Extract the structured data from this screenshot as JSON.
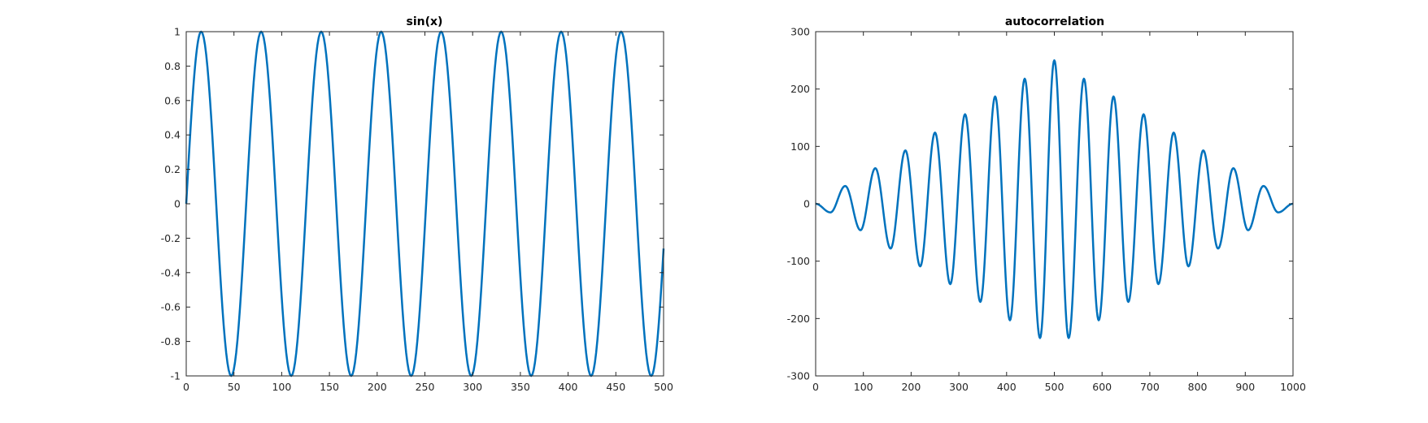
{
  "style": {
    "line_color": "#0072bd",
    "axes_color": "#262626",
    "background": "#ffffff"
  },
  "chart_data": [
    {
      "type": "line",
      "title": "sin(x)",
      "xlabel": "",
      "ylabel": "",
      "xlim": [
        0,
        500
      ],
      "ylim": [
        -1,
        1
      ],
      "grid": false,
      "xticks": [
        "0",
        "50",
        "100",
        "150",
        "200",
        "250",
        "300",
        "350",
        "400",
        "450",
        "500"
      ],
      "yticks": [
        "1",
        "0.8",
        "0.6",
        "0.4",
        "0.2",
        "0",
        "-0.2",
        "-0.4",
        "-0.6",
        "-0.8",
        "-1"
      ],
      "series": [
        {
          "function": "sin(x/10)",
          "x_range": [
            0,
            500
          ],
          "peaks": [
            {
              "x": 15.7,
              "y": 1
            },
            {
              "x": 78.5,
              "y": 1
            },
            {
              "x": 141.4,
              "y": 1
            },
            {
              "x": 204.2,
              "y": 1
            },
            {
              "x": 267.0,
              "y": 1
            },
            {
              "x": 329.9,
              "y": 1
            },
            {
              "x": 392.7,
              "y": 1
            },
            {
              "x": 455.5,
              "y": 1
            }
          ],
          "troughs": [
            {
              "x": 47.1,
              "y": -1
            },
            {
              "x": 110.0,
              "y": -1
            },
            {
              "x": 172.8,
              "y": -1
            },
            {
              "x": 235.6,
              "y": -1
            },
            {
              "x": 298.5,
              "y": -1
            },
            {
              "x": 361.3,
              "y": -1
            },
            {
              "x": 424.1,
              "y": -1
            },
            {
              "x": 487.0,
              "y": -1
            }
          ],
          "end": {
            "x": 500,
            "y": -0.26
          }
        }
      ]
    },
    {
      "type": "line",
      "title": "autocorrelation",
      "xlabel": "",
      "ylabel": "",
      "xlim": [
        0,
        1000
      ],
      "ylim": [
        -300,
        300
      ],
      "grid": false,
      "xticks": [
        "0",
        "100",
        "200",
        "300",
        "400",
        "500",
        "600",
        "700",
        "800",
        "900",
        "1000"
      ],
      "yticks": [
        "300",
        "200",
        "100",
        "0",
        "-100",
        "-200",
        "-300"
      ],
      "series": [
        {
          "description": "autocorrelation of sin(x/10), lags 0..1000",
          "x_range": [
            0,
            1000
          ],
          "center": {
            "x": 500,
            "y": 250
          },
          "peaks": [
            {
              "x": 62,
              "y": 31
            },
            {
              "x": 125,
              "y": 62
            },
            {
              "x": 188,
              "y": 93
            },
            {
              "x": 250,
              "y": 124
            },
            {
              "x": 313,
              "y": 156
            },
            {
              "x": 376,
              "y": 187
            },
            {
              "x": 438,
              "y": 218
            },
            {
              "x": 500,
              "y": 250
            },
            {
              "x": 562,
              "y": 218
            },
            {
              "x": 624,
              "y": 187
            },
            {
              "x": 687,
              "y": 156
            },
            {
              "x": 750,
              "y": 124
            },
            {
              "x": 812,
              "y": 93
            },
            {
              "x": 875,
              "y": 62
            },
            {
              "x": 938,
              "y": 31
            }
          ],
          "troughs": [
            {
              "x": 31,
              "y": -15
            },
            {
              "x": 94,
              "y": -46
            },
            {
              "x": 157,
              "y": -78
            },
            {
              "x": 219,
              "y": -109
            },
            {
              "x": 282,
              "y": -140
            },
            {
              "x": 345,
              "y": -171
            },
            {
              "x": 407,
              "y": -203
            },
            {
              "x": 470,
              "y": -234
            },
            {
              "x": 530,
              "y": -234
            },
            {
              "x": 593,
              "y": -203
            },
            {
              "x": 655,
              "y": -171
            },
            {
              "x": 718,
              "y": -140
            },
            {
              "x": 781,
              "y": -109
            },
            {
              "x": 843,
              "y": -78
            },
            {
              "x": 906,
              "y": -46
            },
            {
              "x": 969,
              "y": -15
            }
          ]
        }
      ]
    }
  ]
}
